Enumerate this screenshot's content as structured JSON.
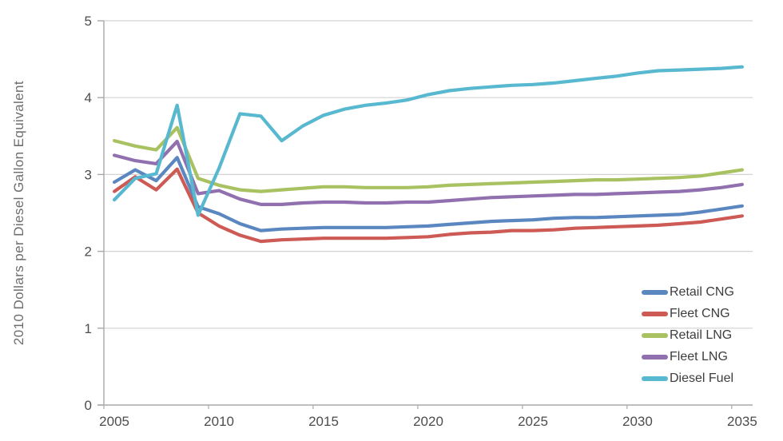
{
  "chart_data": {
    "type": "line",
    "title": "",
    "xlabel": "",
    "ylabel": "2010 Dollars per Diesel Gallon Equivalent",
    "x": [
      2005,
      2006,
      2007,
      2008,
      2009,
      2010,
      2011,
      2012,
      2013,
      2014,
      2015,
      2016,
      2017,
      2018,
      2019,
      2020,
      2021,
      2022,
      2023,
      2024,
      2025,
      2026,
      2027,
      2028,
      2029,
      2030,
      2031,
      2032,
      2033,
      2034,
      2035
    ],
    "x_ticks": [
      2005,
      2010,
      2015,
      2020,
      2025,
      2030,
      2035
    ],
    "y_ticks": [
      0,
      1,
      2,
      3,
      4,
      5
    ],
    "xlim": [
      2005,
      2035
    ],
    "ylim": [
      0,
      5
    ],
    "grid": "horizontal",
    "legend_position": "inside-lower-right",
    "series": [
      {
        "name": "Retail CNG",
        "color": "#5b87c0",
        "values": [
          2.9,
          3.06,
          2.92,
          3.22,
          2.58,
          2.49,
          2.36,
          2.27,
          2.29,
          2.3,
          2.31,
          2.31,
          2.31,
          2.31,
          2.32,
          2.33,
          2.35,
          2.37,
          2.39,
          2.4,
          2.41,
          2.43,
          2.44,
          2.44,
          2.45,
          2.46,
          2.47,
          2.48,
          2.51,
          2.55,
          2.59
        ]
      },
      {
        "name": "Fleet CNG",
        "color": "#cd5a55",
        "values": [
          2.78,
          2.97,
          2.8,
          3.07,
          2.5,
          2.33,
          2.21,
          2.13,
          2.15,
          2.16,
          2.17,
          2.17,
          2.17,
          2.17,
          2.18,
          2.19,
          2.22,
          2.24,
          2.25,
          2.27,
          2.27,
          2.28,
          2.3,
          2.31,
          2.32,
          2.33,
          2.34,
          2.36,
          2.38,
          2.42,
          2.46
        ]
      },
      {
        "name": "Retail LNG",
        "color": "#a8c161",
        "values": [
          3.44,
          3.37,
          3.32,
          3.61,
          2.95,
          2.86,
          2.8,
          2.78,
          2.8,
          2.82,
          2.84,
          2.84,
          2.83,
          2.83,
          2.83,
          2.84,
          2.86,
          2.87,
          2.88,
          2.89,
          2.9,
          2.91,
          2.92,
          2.93,
          2.93,
          2.94,
          2.95,
          2.96,
          2.98,
          3.02,
          3.06
        ]
      },
      {
        "name": "Fleet LNG",
        "color": "#9070ae",
        "values": [
          3.25,
          3.18,
          3.14,
          3.43,
          2.75,
          2.79,
          2.68,
          2.61,
          2.61,
          2.63,
          2.64,
          2.64,
          2.63,
          2.63,
          2.64,
          2.64,
          2.66,
          2.68,
          2.7,
          2.71,
          2.72,
          2.73,
          2.74,
          2.74,
          2.75,
          2.76,
          2.77,
          2.78,
          2.8,
          2.83,
          2.87
        ]
      },
      {
        "name": "Diesel Fuel",
        "color": "#57b8d0",
        "values": [
          2.67,
          2.95,
          3.01,
          3.9,
          2.47,
          3.08,
          3.79,
          3.76,
          3.44,
          3.63,
          3.77,
          3.85,
          3.9,
          3.93,
          3.97,
          4.04,
          4.09,
          4.12,
          4.14,
          4.16,
          4.17,
          4.19,
          4.22,
          4.25,
          4.28,
          4.32,
          4.35,
          4.36,
          4.37,
          4.38,
          4.4
        ]
      }
    ],
    "style": {
      "grid_color": "#d3d3d3",
      "axis_color": "#a9a9a9",
      "tick_label_color": "#4d4d4d",
      "y_title_color": "#6e6e6e",
      "legend_text_color": "#3d3d3d"
    }
  }
}
